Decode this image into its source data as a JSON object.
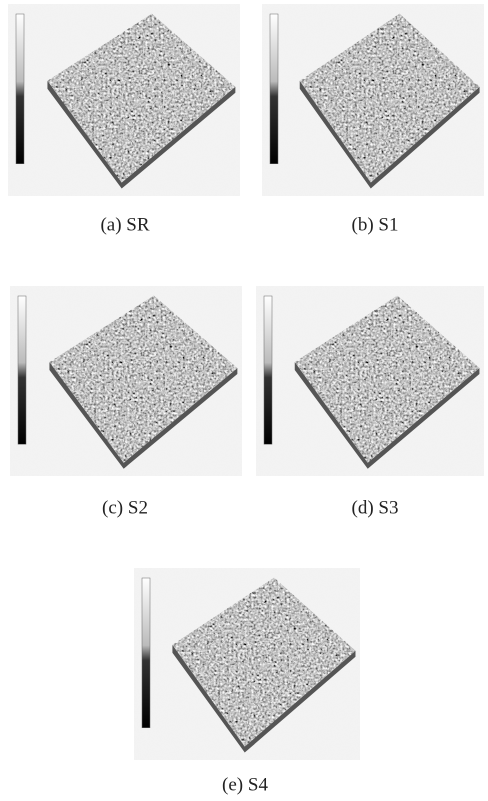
{
  "panels": [
    {
      "caption": "(a) SR"
    },
    {
      "caption": "(b) S1"
    },
    {
      "caption": "(c) S2"
    },
    {
      "caption": "(d) S3"
    },
    {
      "caption": "(e) S4"
    }
  ]
}
